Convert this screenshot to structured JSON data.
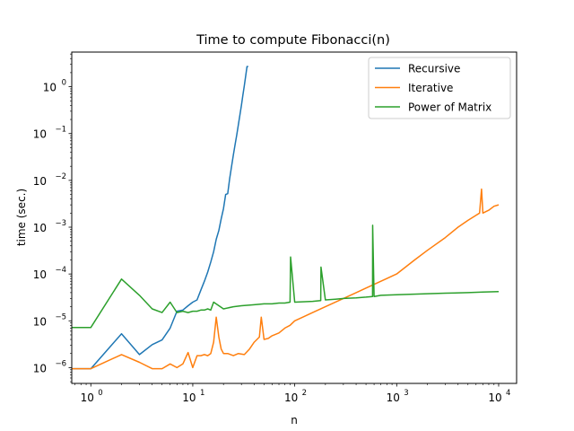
{
  "chart_data": {
    "type": "line",
    "title": "Time to compute Fibonacci(n)",
    "xlabel": "n",
    "ylabel": "time (sec.)",
    "xscale": "log",
    "yscale": "log",
    "xlim": [
      0.65,
      15000
    ],
    "ylim": [
      4.6e-07,
      5.5
    ],
    "grid": false,
    "legend_position": "top-right",
    "x_ticks": [
      {
        "value": 1,
        "base": "10",
        "exp": "0"
      },
      {
        "value": 10,
        "base": "10",
        "exp": "1"
      },
      {
        "value": 100,
        "base": "10",
        "exp": "2"
      },
      {
        "value": 1000,
        "base": "10",
        "exp": "3"
      },
      {
        "value": 10000,
        "base": "10",
        "exp": "4"
      }
    ],
    "y_ticks": [
      {
        "value": 1e-06,
        "base": "10",
        "exp": "−6"
      },
      {
        "value": 1e-05,
        "base": "10",
        "exp": "−5"
      },
      {
        "value": 0.0001,
        "base": "10",
        "exp": "−4"
      },
      {
        "value": 0.001,
        "base": "10",
        "exp": "−3"
      },
      {
        "value": 0.01,
        "base": "10",
        "exp": "−2"
      },
      {
        "value": 0.1,
        "base": "10",
        "exp": "−1"
      },
      {
        "value": 1,
        "base": "10",
        "exp": "0"
      }
    ],
    "series": [
      {
        "name": "Recursive",
        "color": "#1f77b4",
        "x": [
          0,
          1,
          2,
          3,
          4,
          5,
          6,
          7,
          8,
          9,
          10,
          11,
          12,
          13,
          14,
          15,
          16,
          17,
          18,
          19,
          20,
          21,
          22,
          23,
          24,
          25,
          26,
          27,
          28,
          29,
          30,
          31,
          32,
          33,
          34,
          35
        ],
        "y": [
          9.5e-07,
          9.5e-07,
          5.3e-06,
          1.9e-06,
          3.1e-06,
          3.9e-06,
          7e-06,
          1.6e-05,
          1.7e-05,
          2.1e-05,
          2.5e-05,
          2.8e-05,
          4.5e-05,
          7e-05,
          0.00011,
          0.00018,
          0.0003,
          0.00055,
          0.00085,
          0.0015,
          0.0025,
          0.005,
          0.0052,
          0.011,
          0.02,
          0.035,
          0.058,
          0.094,
          0.155,
          0.25,
          0.4,
          0.66,
          1.05,
          1.68,
          2.7,
          2.7
        ]
      },
      {
        "name": "Iterative",
        "color": "#ff7f0e",
        "x": [
          0,
          1,
          2,
          3,
          4,
          5,
          6,
          7,
          8,
          9,
          10,
          11,
          12,
          13,
          14,
          15,
          16,
          17,
          18,
          19,
          20,
          22,
          25,
          28,
          32,
          36,
          40,
          45,
          47,
          50,
          55,
          60,
          70,
          80,
          90,
          100,
          120,
          150,
          200,
          300,
          400,
          500,
          600,
          800,
          1000,
          1500,
          2000,
          3000,
          4000,
          5000,
          6000,
          6500,
          6800,
          7000,
          8000,
          9000,
          10000
        ],
        "y": [
          9.5e-07,
          9.5e-07,
          1.9e-06,
          1.3e-06,
          9.5e-07,
          9.5e-07,
          1.2e-06,
          1e-06,
          1.2e-06,
          2.1e-06,
          1e-06,
          1.8e-06,
          1.8e-06,
          1.9e-06,
          1.8e-06,
          2e-06,
          3.5e-06,
          1.2e-05,
          4.5e-06,
          2.5e-06,
          2e-06,
          2e-06,
          1.8e-06,
          2e-06,
          1.9e-06,
          2.5e-06,
          3.5e-06,
          4.5e-06,
          1.2e-05,
          4e-06,
          4.2e-06,
          4.8e-06,
          5.5e-06,
          7e-06,
          8e-06,
          1e-05,
          1.2e-05,
          1.5e-05,
          2e-05,
          3e-05,
          4e-05,
          5e-05,
          6e-05,
          8e-05,
          0.0001,
          0.0002,
          0.00032,
          0.0006,
          0.001,
          0.0014,
          0.0018,
          0.002,
          0.0065,
          0.002,
          0.0023,
          0.0028,
          0.003
        ]
      },
      {
        "name": "Power of Matrix",
        "color": "#2ca02c",
        "x": [
          0,
          1,
          2,
          3,
          4,
          5,
          6,
          7,
          8,
          9,
          10,
          11,
          12,
          13,
          14,
          15,
          16,
          20,
          25,
          30,
          40,
          50,
          60,
          70,
          80,
          90,
          91,
          100,
          150,
          180,
          181,
          200,
          250,
          300,
          400,
          500,
          580,
          581,
          600,
          700,
          1000,
          2000,
          3000,
          5000,
          7000,
          10000
        ],
        "y": [
          7.2e-06,
          7.2e-06,
          7.8e-05,
          3.5e-05,
          1.8e-05,
          1.5e-05,
          2.5e-05,
          1.5e-05,
          1.6e-05,
          1.5e-05,
          1.6e-05,
          1.6e-05,
          1.7e-05,
          1.7e-05,
          1.8e-05,
          1.7e-05,
          2.5e-05,
          1.8e-05,
          2e-05,
          2.1e-05,
          2.2e-05,
          2.3e-05,
          2.3e-05,
          2.4e-05,
          2.4e-05,
          2.5e-05,
          0.00023,
          2.5e-05,
          2.6e-05,
          2.7e-05,
          0.00014,
          2.8e-05,
          2.9e-05,
          3e-05,
          3.1e-05,
          3.2e-05,
          3.3e-05,
          0.0011,
          3.3e-05,
          3.5e-05,
          3.6e-05,
          3.8e-05,
          3.9e-05,
          4e-05,
          4.1e-05,
          4.2e-05
        ]
      }
    ]
  }
}
